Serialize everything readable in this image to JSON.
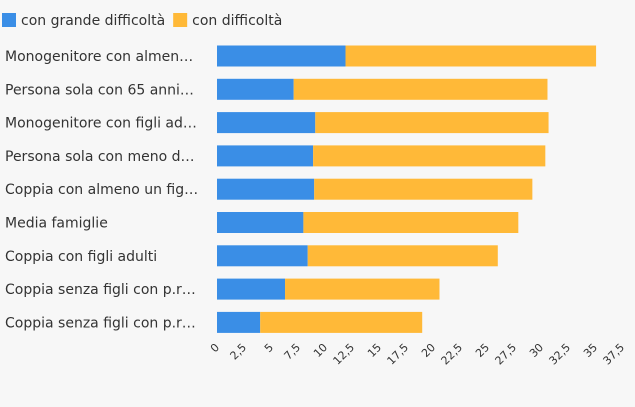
{
  "chart_data": {
    "type": "bar",
    "orientation": "horizontal",
    "stacked": true,
    "categories": [
      "Monogenitore con almen…",
      "Persona sola con 65 anni…",
      "Monogenitore con figli ad…",
      "Persona sola con meno d…",
      "Coppia con almeno un fig…",
      "Media famiglie",
      "Coppia con figli adulti",
      "Coppia senza figli con p.r…",
      "Coppia senza figli con p.r…"
    ],
    "series": [
      {
        "name": "con grande difficoltà",
        "color": "#3a8ee6",
        "values": [
          11.9,
          7.1,
          9.1,
          8.9,
          9.0,
          8.0,
          8.4,
          6.3,
          4.0
        ]
      },
      {
        "name": "con difficoltà",
        "color": "#ffb938",
        "values": [
          23.2,
          23.5,
          21.6,
          21.5,
          20.2,
          19.9,
          17.6,
          14.3,
          15.0
        ]
      }
    ],
    "x_ticks": [
      "0",
      "2,5",
      "5",
      "7,5",
      "10",
      "12,5",
      "15",
      "17,5",
      "20",
      "22,5",
      "25",
      "27,5",
      "30",
      "32,5",
      "35",
      "37,5"
    ],
    "xlim": [
      0,
      37.5
    ],
    "grid": false,
    "legend_position": "top-left",
    "title": "",
    "xlabel": "",
    "ylabel": ""
  }
}
